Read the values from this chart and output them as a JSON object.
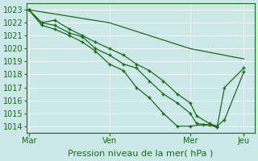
{
  "background_color": "#cce8e8",
  "grid_color": "#ffffff",
  "line_color": "#1a6b1a",
  "marker_color": "#1a6b1a",
  "ylabel_ticks": [
    1014,
    1015,
    1016,
    1017,
    1018,
    1019,
    1020,
    1021,
    1022,
    1023
  ],
  "ylim": [
    1013.5,
    1023.5
  ],
  "xlabel": "Pression niveau de la mer( hPa )",
  "xtick_labels": [
    "Mar",
    "Ven",
    "Mer",
    "Jeu"
  ],
  "xtick_positions": [
    0.0,
    0.375,
    0.75,
    1.0
  ],
  "vline_positions": [
    0.0,
    0.375,
    0.75,
    1.0
  ],
  "series": [
    {
      "x": [
        0.0,
        0.375,
        0.75,
        1.0
      ],
      "y": [
        1023.0,
        1022.0,
        1020.0,
        1019.2
      ]
    },
    {
      "x": [
        0.0,
        0.06,
        0.12,
        0.19,
        0.25,
        0.31,
        0.375,
        0.44,
        0.5,
        0.56,
        0.625,
        0.69,
        0.75,
        0.78,
        0.84,
        0.875,
        0.91,
        1.0
      ],
      "y": [
        1023.0,
        1022.0,
        1022.2,
        1021.5,
        1021.0,
        1020.5,
        1020.0,
        1019.5,
        1018.8,
        1018.3,
        1017.5,
        1016.5,
        1015.8,
        1014.8,
        1014.2,
        1014.0,
        1014.5,
        1018.2
      ]
    },
    {
      "x": [
        0.0,
        0.06,
        0.12,
        0.19,
        0.25,
        0.31,
        0.375,
        0.44,
        0.5,
        0.56,
        0.625,
        0.69,
        0.75,
        0.78,
        0.84,
        0.875,
        0.91,
        1.0
      ],
      "y": [
        1023.0,
        1022.0,
        1021.8,
        1021.2,
        1020.9,
        1020.0,
        1019.5,
        1018.8,
        1018.5,
        1017.5,
        1016.5,
        1015.8,
        1015.0,
        1014.2,
        1014.1,
        1013.9,
        1017.0,
        1018.5
      ]
    },
    {
      "x": [
        0.0,
        0.06,
        0.12,
        0.19,
        0.25,
        0.31,
        0.375,
        0.44,
        0.5,
        0.56,
        0.625,
        0.69,
        0.75,
        0.81,
        0.875
      ],
      "y": [
        1023.0,
        1021.8,
        1021.5,
        1021.0,
        1020.5,
        1019.8,
        1018.8,
        1018.3,
        1017.0,
        1016.2,
        1015.0,
        1014.0,
        1014.0,
        1014.1,
        1014.0
      ]
    }
  ],
  "tick_color": "#1a6b1a",
  "label_fontsize": 8,
  "tick_fontsize": 7
}
